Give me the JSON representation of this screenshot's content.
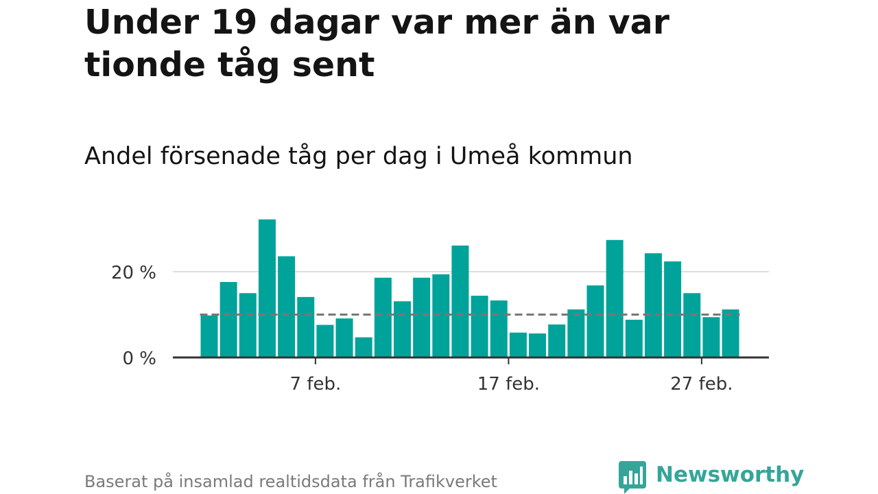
{
  "header": {
    "title": "Under 19 dagar var mer än var tionde tåg sent",
    "subtitle": "Andel försenade tåg per dag i Umeå kommun"
  },
  "footer": {
    "source": "Baserat på insamlad realtidsdata från Trafikverket",
    "brand": "Newsworthy",
    "brand_icon": "newsworthy-logo-icon"
  },
  "colors": {
    "bar": "#00a39a",
    "reference_line": "#777777",
    "grid": "#dddddd",
    "axis": "#333333",
    "brand": "#35a599"
  },
  "chart_data": {
    "type": "bar",
    "x": [
      "2024-02-01",
      "2024-02-02",
      "2024-02-03",
      "2024-02-04",
      "2024-02-05",
      "2024-02-06",
      "2024-02-07",
      "2024-02-08",
      "2024-02-09",
      "2024-02-10",
      "2024-02-11",
      "2024-02-12",
      "2024-02-13",
      "2024-02-14",
      "2024-02-15",
      "2024-02-16",
      "2024-02-17",
      "2024-02-18",
      "2024-02-19",
      "2024-02-20",
      "2024-02-21",
      "2024-02-22",
      "2024-02-23",
      "2024-02-24",
      "2024-02-25",
      "2024-02-26",
      "2024-02-27",
      "2024-02-28"
    ],
    "values": [
      9.8,
      17.6,
      15.0,
      32.2,
      23.6,
      14.1,
      7.6,
      9.1,
      4.7,
      18.6,
      13.1,
      18.6,
      19.4,
      26.1,
      14.4,
      13.3,
      5.8,
      5.6,
      7.7,
      11.2,
      16.8,
      27.4,
      8.8,
      24.3,
      22.4,
      15.0,
      9.4,
      11.2
    ],
    "reference_line": 10,
    "ylim": [
      0,
      34
    ],
    "yticks": [
      0,
      20
    ],
    "ytick_labels": [
      "0 %",
      "20 %"
    ],
    "xtick_labels": [
      "7 feb.",
      "17 feb.",
      "27 feb."
    ],
    "xlabel": "",
    "ylabel": "",
    "grid": true
  }
}
